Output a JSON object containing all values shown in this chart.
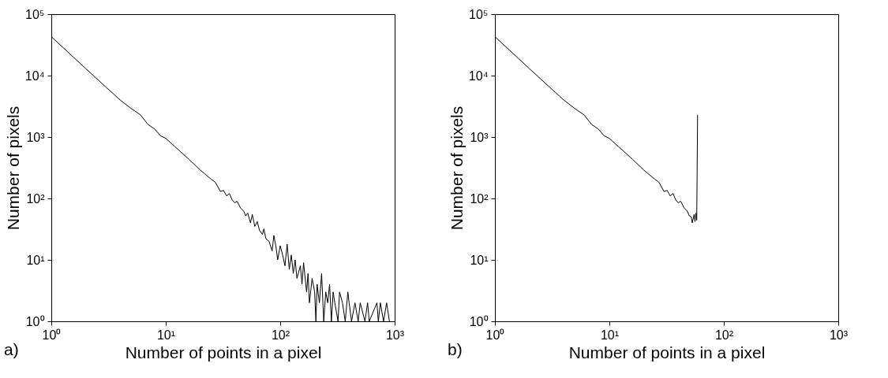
{
  "chart_data": [
    {
      "type": "line",
      "xlabel": "Number of points in a pixel",
      "ylabel": "Number of pixels",
      "annotations": [
        "a)"
      ],
      "log": "xy",
      "grid": false,
      "xlim": [
        1,
        1000
      ],
      "ylim": [
        1,
        100000
      ],
      "xticks": [
        {
          "value": 1,
          "label": "10⁰"
        },
        {
          "value": 10,
          "label": "10¹"
        },
        {
          "value": 100,
          "label": "10²"
        },
        {
          "value": 1000,
          "label": "10³"
        }
      ],
      "yticks": [
        {
          "value": 1,
          "label": "10⁰"
        },
        {
          "value": 10,
          "label": "10¹"
        },
        {
          "value": 100,
          "label": "10²"
        },
        {
          "value": 1000,
          "label": "10³"
        },
        {
          "value": 10000,
          "label": "10⁴"
        },
        {
          "value": 100000,
          "label": "10⁵"
        }
      ],
      "series": [
        {
          "color": "#000000",
          "x": [
            1,
            2,
            3,
            4,
            5,
            6,
            7,
            8,
            9,
            10,
            12,
            14,
            16,
            18,
            20,
            22,
            25,
            27,
            28,
            30,
            32,
            34,
            36,
            38,
            40,
            42,
            45,
            48,
            50,
            52,
            55,
            57,
            60,
            63,
            66,
            70,
            72,
            75,
            80,
            85,
            88,
            92,
            95,
            100,
            105,
            110,
            115,
            120,
            125,
            130,
            135,
            140,
            150,
            155,
            160,
            170,
            175,
            180,
            190,
            200,
            205,
            210,
            220,
            230,
            240,
            250,
            260,
            270,
            280,
            290,
            300,
            320,
            330,
            350,
            370,
            390,
            400,
            420,
            450,
            480,
            500,
            550,
            580,
            600,
            700,
            720,
            750,
            800,
            850,
            900
          ],
          "values": [
            43000,
            13000,
            6500,
            4000,
            2900,
            2300,
            1600,
            1350,
            1050,
            950,
            700,
            540,
            430,
            350,
            290,
            250,
            205,
            185,
            165,
            130,
            135,
            110,
            120,
            95,
            85,
            90,
            70,
            62,
            52,
            58,
            40,
            55,
            35,
            42,
            30,
            26,
            32,
            22,
            20,
            14,
            25,
            16,
            10,
            17,
            12,
            8,
            18,
            7,
            12,
            6,
            10,
            5,
            8,
            4,
            9,
            3,
            6,
            2,
            5,
            3,
            1,
            4,
            2,
            6,
            1,
            3,
            2,
            4,
            1,
            3,
            2,
            1,
            3,
            2,
            1,
            3,
            2,
            1,
            2,
            1,
            2,
            1,
            2,
            1,
            2,
            1,
            2,
            1,
            2,
            1
          ]
        }
      ]
    },
    {
      "type": "line",
      "xlabel": "Number of points in a pixel",
      "ylabel": "Number of pixels",
      "annotations": [
        "b)"
      ],
      "log": "xy",
      "grid": false,
      "xlim": [
        1,
        1000
      ],
      "ylim": [
        1,
        100000
      ],
      "xticks": [
        {
          "value": 1,
          "label": "10⁰"
        },
        {
          "value": 10,
          "label": "10¹"
        },
        {
          "value": 100,
          "label": "10²"
        },
        {
          "value": 1000,
          "label": "10³"
        }
      ],
      "yticks": [
        {
          "value": 1,
          "label": "10⁰"
        },
        {
          "value": 10,
          "label": "10¹"
        },
        {
          "value": 100,
          "label": "10²"
        },
        {
          "value": 1000,
          "label": "10³"
        },
        {
          "value": 10000,
          "label": "10⁴"
        },
        {
          "value": 100000,
          "label": "10⁵"
        }
      ],
      "series": [
        {
          "color": "#000000",
          "x": [
            1,
            2,
            3,
            4,
            5,
            6,
            7,
            8,
            9,
            10,
            12,
            14,
            16,
            18,
            20,
            22,
            25,
            27,
            28,
            30,
            32,
            34,
            36,
            38,
            40,
            42,
            45,
            48,
            50,
            52,
            53,
            55,
            56,
            57,
            58,
            59
          ],
          "values": [
            43000,
            13000,
            6500,
            4000,
            2900,
            2300,
            1600,
            1350,
            1050,
            950,
            700,
            540,
            430,
            350,
            290,
            250,
            205,
            185,
            165,
            130,
            135,
            110,
            120,
            95,
            85,
            90,
            70,
            62,
            52,
            50,
            40,
            55,
            42,
            58,
            44,
            2300
          ]
        }
      ]
    }
  ]
}
